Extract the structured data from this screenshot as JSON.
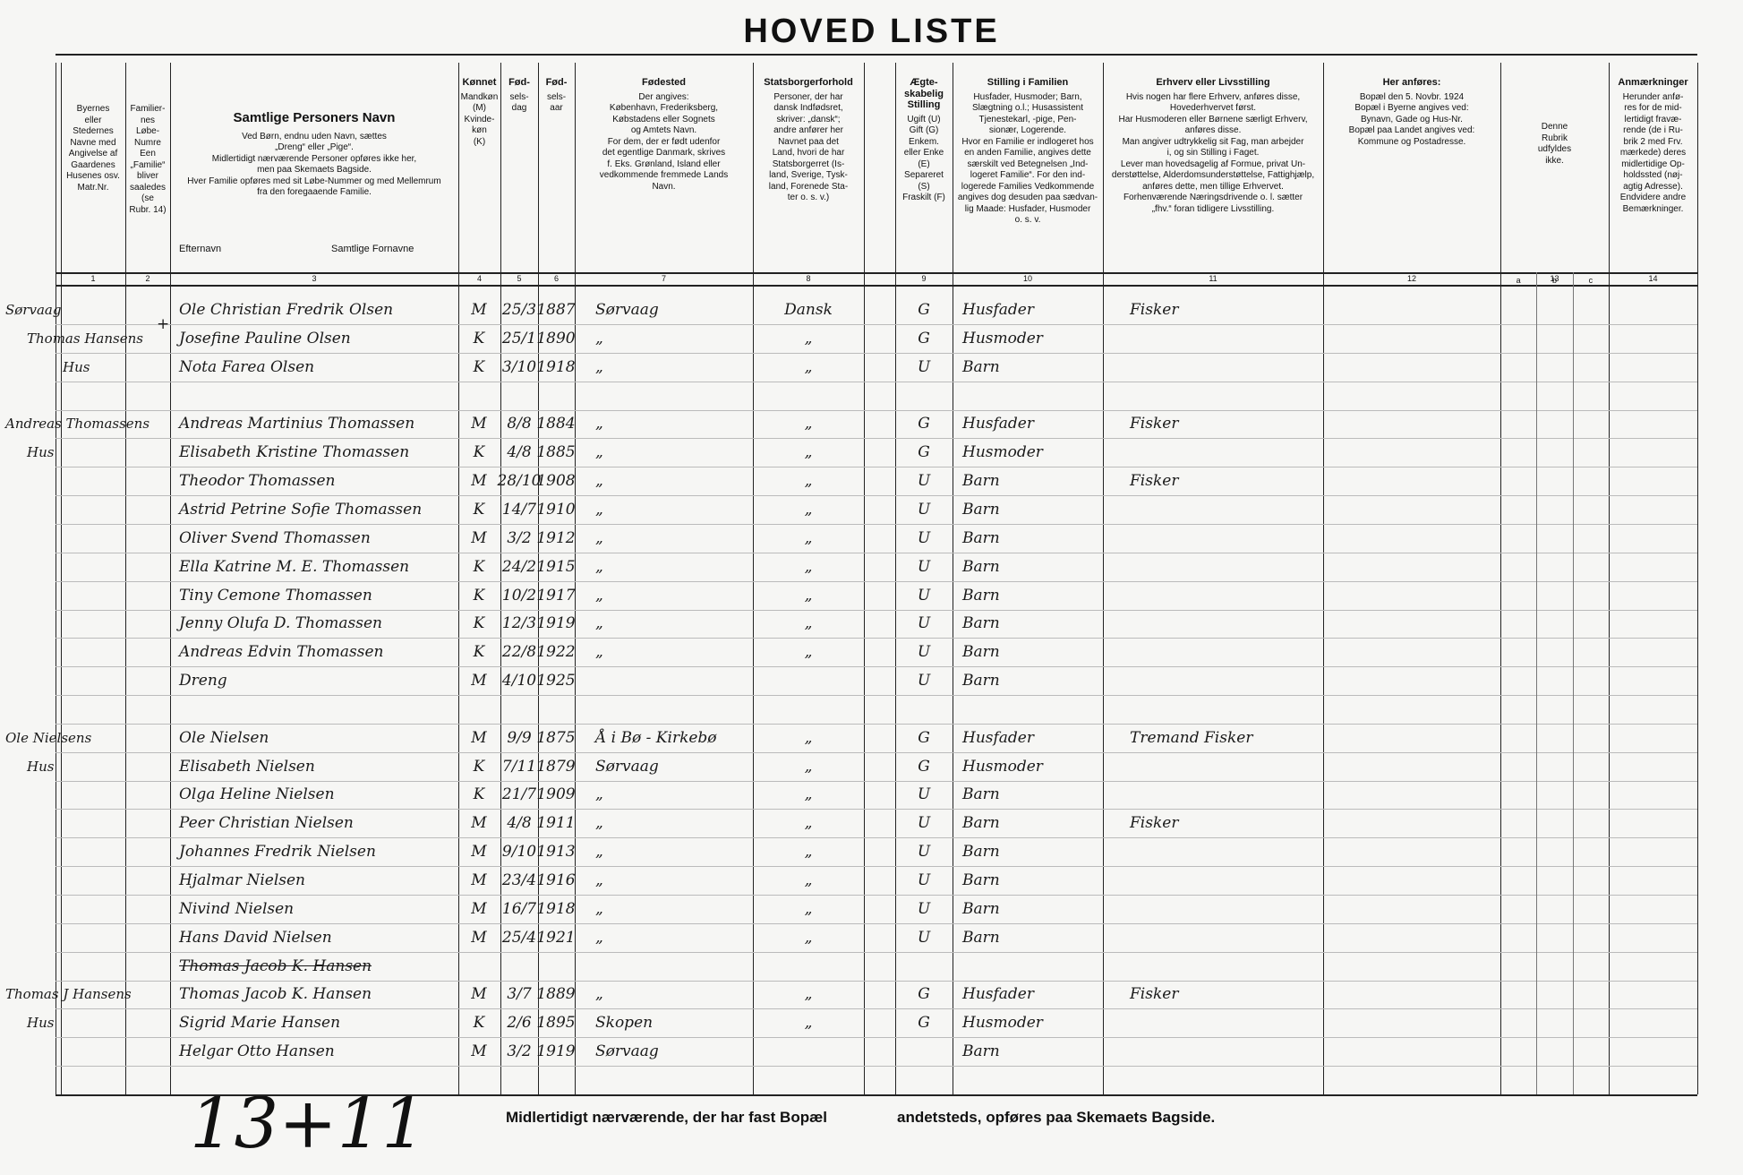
{
  "header": {
    "title": "HOVED LISTE"
  },
  "columns": [
    {
      "number": "1",
      "lines": [
        "Byernes",
        "eller",
        "Stedernes",
        "Navne med",
        "Angivelse af",
        "Gaardenes",
        "Husenes osv.",
        "Matr.Nr."
      ]
    },
    {
      "number": "2",
      "lines": [
        "Familier-",
        "nes",
        "Løbe-",
        "Numre",
        "Een",
        "„Familie“",
        "bliver saaledes",
        "(se",
        "Rubr. 14)"
      ]
    },
    {
      "number": "3",
      "title": "Samtlige Personers Navn",
      "lines": [
        "Ved Børn, endnu uden Navn, sættes",
        "„Dreng“ eller „Pige“.",
        "Midlertidigt nærværende Personer opføres ikke her,",
        "men paa Skemaets Bagside.",
        "Hver Familie opføres med sit Løbe-Nummer og med Mellemrum",
        "fra den foregaaende Familie."
      ],
      "subheads": [
        "Efternavn",
        "Samtlige Fornavne"
      ]
    },
    {
      "number": "4",
      "title": "Kønnet",
      "lines": [
        "Mandkøn",
        "(M)",
        "Kvinde-",
        "køn",
        "(K)"
      ]
    },
    {
      "number": "5",
      "title": "Fød-",
      "lines": [
        "sels-",
        "dag"
      ]
    },
    {
      "number": "6",
      "title": "Fød-",
      "lines": [
        "sels-",
        "aar"
      ]
    },
    {
      "number": "7",
      "title": "Fødested",
      "lines": [
        "Der angives:",
        "København, Frederiksberg,",
        "Købstadens eller Sognets",
        "og Amtets Navn.",
        "For dem, der er født udenfor",
        "det egentlige Danmark, skrives",
        "f. Eks. Grønland, Island eller",
        "vedkommende fremmede Lands",
        "Navn."
      ]
    },
    {
      "number": "8",
      "title": "Statsborgerforhold",
      "lines": [
        "Personer, der har",
        "dansk Indfødsret,",
        "skriver: „dansk“;",
        "andre anfører her",
        "Navnet paa det",
        "Land, hvori de har",
        "Statsborgerret (Is-",
        "land, Sverige, Tysk-",
        "land, Forenede Sta-",
        "ter o. s. v.)"
      ]
    },
    {
      "number": "9",
      "title": "Ægte-skabelig Stilling",
      "lines": [
        "Ugift (U)",
        "Gift (G)",
        "Enkem.",
        "eller Enke",
        "(E)",
        "Separeret",
        "(S)",
        "Fraskilt (F)"
      ]
    },
    {
      "number": "10",
      "title": "Stilling i Familien",
      "lines": [
        "Husfader, Husmoder; Barn,",
        "Slægtning o.l.; Husassistent",
        "Tjenestekarl, -pige, Pen-",
        "sionær, Logerende.",
        "Hvor en Familie er indlogeret hos",
        "en anden Familie, angives dette",
        "særskilt ved Betegnelsen „Ind-",
        "logeret Familie“. For den ind-",
        "logerede Families Vedkommende",
        "angives dog desuden paa sædvan-",
        "lig Maade: Husfader, Husmoder",
        "o. s. v."
      ]
    },
    {
      "number": "11",
      "title": "Erhverv eller Livsstilling",
      "lines": [
        "Hvis nogen har flere Erhverv, anføres disse,",
        "Hovederhvervet først.",
        "Har Husmoderen eller Børnene særligt Erhverv,",
        "anføres disse.",
        "Man angiver udtrykkelig sit Fag, man arbejder",
        "i, og sin Stilling i Faget.",
        "Lever man hovedsagelig af Formue, privat Un-",
        "derstøttelse, Alderdomsunderstøttelse, Fattighjælp,",
        "anføres dette, men tillige Erhvervet.",
        "Forhenværende Næringsdrivende o. l. sætter",
        "„fhv.“ foran tidligere Livsstilling."
      ]
    },
    {
      "number": "12",
      "title": "Her anføres:",
      "lines": [
        "Bopæl den 5. Novbr. 1924",
        "Bopæl i Byerne angives ved:",
        "Bynavn, Gade og Hus-Nr.",
        "Bopæl paa Landet angives ved:",
        "Kommune og Postadresse."
      ]
    },
    {
      "number": "13",
      "lines": [
        "Denne",
        "Rubrik",
        "udfyldes",
        "ikke."
      ],
      "subcolumns": [
        "a",
        "b",
        "c"
      ]
    },
    {
      "number": "14",
      "title": "Anmærkninger",
      "lines": [
        "Herunder anfø-",
        "res for de mid-",
        "lertidigt fravæ-",
        "rende (de i Ru-",
        "brik 2 med Frv.",
        "mærkede) deres",
        "midlertidige Op-",
        "holdssted (nøj-",
        "agtig Adresse).",
        "Endvidere andre",
        "Bemærkninger."
      ]
    }
  ],
  "families": [
    {
      "place": [
        "Sørvaag",
        "Thomas Hansens",
        "Hus"
      ],
      "mark": "+",
      "members": [
        {
          "name": "Ole Christian Fredrik Olsen",
          "sex": "M",
          "day": "25/3",
          "year": "1887",
          "birthplace": "Sørvaag",
          "citizenship": "Dansk",
          "marital": "G",
          "position": "Husfader",
          "occupation": "Fisker"
        },
        {
          "name": "Josefine Pauline Olsen",
          "sex": "K",
          "day": "25/1",
          "year": "1890",
          "birthplace": "„",
          "citizenship": "„",
          "marital": "G",
          "position": "Husmoder"
        },
        {
          "name": "Nota Farea Olsen",
          "sex": "K",
          "day": "3/10",
          "year": "1918",
          "birthplace": "„",
          "citizenship": "„",
          "marital": "U",
          "position": "Barn"
        }
      ]
    },
    {
      "place": [
        "Andreas Thomassens",
        "Hus"
      ],
      "members": [
        {
          "name": "Andreas Martinius Thomassen",
          "sex": "M",
          "day": "8/8",
          "year": "1884",
          "birthplace": "„",
          "citizenship": "„",
          "marital": "G",
          "position": "Husfader",
          "occupation": "Fisker"
        },
        {
          "name": "Elisabeth Kristine Thomassen",
          "sex": "K",
          "day": "4/8",
          "year": "1885",
          "birthplace": "„",
          "citizenship": "„",
          "marital": "G",
          "position": "Husmoder"
        },
        {
          "name": "Theodor Thomassen",
          "sex": "M",
          "day": "28/10",
          "year": "1908",
          "birthplace": "„",
          "citizenship": "„",
          "marital": "U",
          "position": "Barn",
          "occupation": "Fisker"
        },
        {
          "name": "Astrid Petrine Sofie Thomassen",
          "sex": "K",
          "day": "14/7",
          "year": "1910",
          "birthplace": "„",
          "citizenship": "„",
          "marital": "U",
          "position": "Barn"
        },
        {
          "name": "Oliver Svend Thomassen",
          "sex": "M",
          "day": "3/2",
          "year": "1912",
          "birthplace": "„",
          "citizenship": "„",
          "marital": "U",
          "position": "Barn"
        },
        {
          "name": "Ella Katrine M. E. Thomassen",
          "sex": "K",
          "day": "24/2",
          "year": "1915",
          "birthplace": "„",
          "citizenship": "„",
          "marital": "U",
          "position": "Barn"
        },
        {
          "name": "Tiny Cemone Thomassen",
          "sex": "K",
          "day": "10/2",
          "year": "1917",
          "birthplace": "„",
          "citizenship": "„",
          "marital": "U",
          "position": "Barn"
        },
        {
          "name": "Jenny Olufa D. Thomassen",
          "sex": "K",
          "day": "12/3",
          "year": "1919",
          "birthplace": "„",
          "citizenship": "„",
          "marital": "U",
          "position": "Barn"
        },
        {
          "name": "Andreas Edvin Thomassen",
          "sex": "K",
          "day": "22/8",
          "year": "1922",
          "birthplace": "„",
          "citizenship": "„",
          "marital": "U",
          "position": "Barn"
        },
        {
          "name": "Dreng",
          "sex": "M",
          "day": "4/10",
          "year": "1925",
          "marital": "U",
          "position": "Barn"
        }
      ]
    },
    {
      "place": [
        "Ole Nielsens",
        "Hus"
      ],
      "members": [
        {
          "name": "Ole Nielsen",
          "sex": "M",
          "day": "9/9",
          "year": "1875",
          "birthplace": "Å i Bø - Kirkebø",
          "citizenship": "„",
          "marital": "G",
          "position": "Husfader",
          "occupation": "Tremand Fisker"
        },
        {
          "name": "Elisabeth Nielsen",
          "sex": "K",
          "day": "7/11",
          "year": "1879",
          "birthplace": "Sørvaag",
          "citizenship": "„",
          "marital": "G",
          "position": "Husmoder"
        },
        {
          "name": "Olga Heline Nielsen",
          "sex": "K",
          "day": "21/7",
          "year": "1909",
          "birthplace": "„",
          "citizenship": "„",
          "marital": "U",
          "position": "Barn"
        },
        {
          "name": "Peer Christian Nielsen",
          "sex": "M",
          "day": "4/8",
          "year": "1911",
          "birthplace": "„",
          "citizenship": "„",
          "marital": "U",
          "position": "Barn",
          "occupation": "Fisker"
        },
        {
          "name": "Johannes Fredrik Nielsen",
          "sex": "M",
          "day": "9/10",
          "year": "1913",
          "birthplace": "„",
          "citizenship": "„",
          "marital": "U",
          "position": "Barn"
        },
        {
          "name": "Hjalmar Nielsen",
          "sex": "M",
          "day": "23/4",
          "year": "1916",
          "birthplace": "„",
          "citizenship": "„",
          "marital": "U",
          "position": "Barn"
        },
        {
          "name": "Nivind Nielsen",
          "sex": "M",
          "day": "16/7",
          "year": "1918",
          "birthplace": "„",
          "citizenship": "„",
          "marital": "U",
          "position": "Barn"
        },
        {
          "name": "Hans David Nielsen",
          "sex": "M",
          "day": "25/4",
          "year": "1921",
          "birthplace": "„",
          "citizenship": "„",
          "marital": "U",
          "position": "Barn"
        },
        {
          "name": "Thomas Jacob K. Hansen",
          "struck": true
        }
      ]
    },
    {
      "place": [
        "Thomas J Hansens",
        "Hus"
      ],
      "members": [
        {
          "name": "Thomas Jacob K. Hansen",
          "sex": "M",
          "day": "3/7",
          "year": "1889",
          "birthplace": "„",
          "citizenship": "„",
          "marital": "G",
          "position": "Husfader",
          "occupation": "Fisker"
        },
        {
          "name": "Sigrid Marie Hansen",
          "sex": "K",
          "day": "2/6",
          "year": "1895",
          "birthplace": "Skopen",
          "citizenship": "„",
          "marital": "G",
          "position": "Husmoder"
        },
        {
          "name": "Helgar Otto Hansen",
          "sex": "M",
          "day": "3/2",
          "year": "1919",
          "birthplace": "Sørvaag",
          "position": "Barn"
        }
      ]
    }
  ],
  "footer": {
    "left": "Midlertidigt nærværende, der har fast Bopæl",
    "right": "andetsteds, opføres paa Skemaets Bagside.",
    "handwritten": "13+11"
  }
}
